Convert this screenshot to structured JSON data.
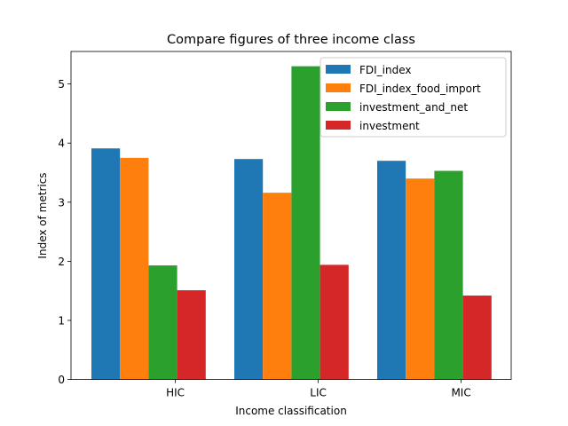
{
  "chart_data": {
    "type": "bar",
    "title": "Compare figures of three income class",
    "xlabel": "Income classification",
    "ylabel": "Index of metrics",
    "categories": [
      "HIC",
      "LIC",
      "MIC"
    ],
    "ylim": [
      0,
      5.55
    ],
    "yticks": [
      0,
      1,
      2,
      3,
      4,
      5
    ],
    "grid": false,
    "legend_position": "top-right",
    "series": [
      {
        "name": "FDI_index",
        "color": "#1f77b4",
        "values": [
          3.91,
          3.73,
          3.7
        ]
      },
      {
        "name": "FDI_index_food_import",
        "color": "#ff7f0e",
        "values": [
          3.75,
          3.16,
          3.4
        ]
      },
      {
        "name": "investment_and_net",
        "color": "#2ca02c",
        "values": [
          1.93,
          5.3,
          3.53
        ]
      },
      {
        "name": "investment",
        "color": "#d62728",
        "values": [
          1.51,
          1.94,
          1.42
        ]
      }
    ]
  }
}
